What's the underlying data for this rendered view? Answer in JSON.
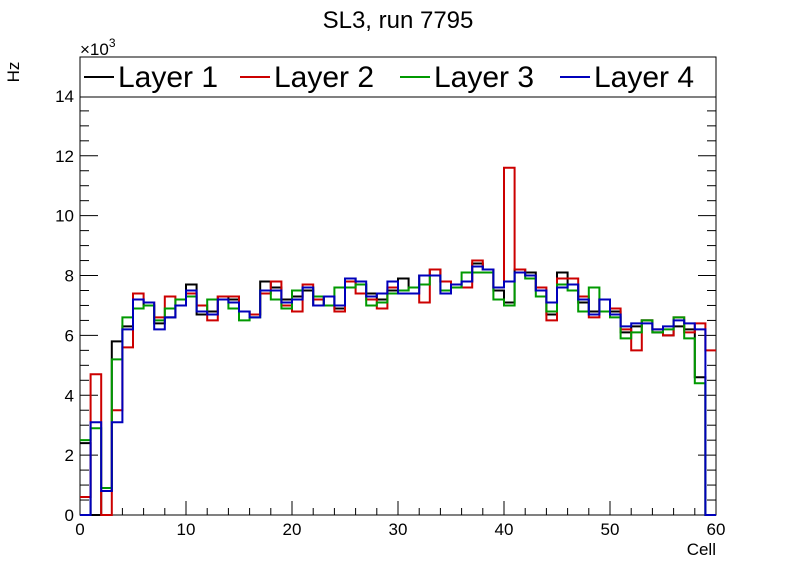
{
  "chart_data": {
    "type": "histogram-step",
    "title": "SL3, run 7795",
    "xlabel": "Cell",
    "ylabel": "Hz",
    "y_multiplier_label": "×10",
    "y_multiplier_exponent": "3",
    "xlim": [
      0,
      60
    ],
    "ylim": [
      0,
      15.3
    ],
    "x_ticks": [
      0,
      10,
      20,
      30,
      40,
      50,
      60
    ],
    "y_ticks": [
      0,
      2,
      4,
      6,
      8,
      10,
      12,
      14
    ],
    "bin_width": 1,
    "legend_position": "top",
    "series": [
      {
        "name": "Layer 1",
        "color": "#000000",
        "values": [
          2.4,
          0,
          0.8,
          5.8,
          6.3,
          7.2,
          7.0,
          6.4,
          6.6,
          7.0,
          7.7,
          6.7,
          6.8,
          7.3,
          7.2,
          6.8,
          6.7,
          7.8,
          7.6,
          7.2,
          7.3,
          7.5,
          7.0,
          7.3,
          6.9,
          7.9,
          7.7,
          7.4,
          7.2,
          7.5,
          7.9,
          7.6,
          8.0,
          8.2,
          7.8,
          7.6,
          7.8,
          8.4,
          8.2,
          7.5,
          7.1,
          8.2,
          8.1,
          7.5,
          6.7,
          8.1,
          7.7,
          7.1,
          6.8,
          7.2,
          6.8,
          6.1,
          6.3,
          6.5,
          6.1,
          6.0,
          6.3,
          6.2,
          4.6,
          0
        ]
      },
      {
        "name": "Layer 2",
        "color": "#cc0000",
        "values": [
          0.6,
          4.7,
          0,
          3.5,
          5.6,
          7.4,
          7.1,
          6.6,
          7.3,
          7.0,
          7.4,
          7.0,
          6.5,
          7.3,
          7.3,
          6.8,
          6.7,
          7.4,
          7.8,
          7.0,
          6.8,
          7.7,
          7.2,
          7.0,
          6.8,
          7.8,
          7.4,
          7.2,
          6.9,
          7.6,
          7.5,
          7.6,
          7.1,
          8.2,
          7.8,
          7.6,
          7.6,
          8.5,
          8.2,
          7.6,
          11.6,
          8.2,
          8.0,
          7.6,
          6.5,
          7.9,
          7.9,
          7.3,
          6.6,
          7.2,
          6.9,
          6.2,
          5.5,
          6.5,
          6.2,
          6.0,
          6.6,
          6.1,
          6.4,
          5.5
        ]
      },
      {
        "name": "Layer 3",
        "color": "#009900",
        "values": [
          2.5,
          2.9,
          0.9,
          5.2,
          6.6,
          6.9,
          7.0,
          6.5,
          6.9,
          7.2,
          7.3,
          6.8,
          7.2,
          7.2,
          6.9,
          6.5,
          6.6,
          7.5,
          7.2,
          6.9,
          7.5,
          7.6,
          7.3,
          7.0,
          7.6,
          7.6,
          7.7,
          7.0,
          7.1,
          7.4,
          7.5,
          7.6,
          7.7,
          8.0,
          7.5,
          7.6,
          8.1,
          8.1,
          8.1,
          7.2,
          7.0,
          8.1,
          7.9,
          7.3,
          6.8,
          7.7,
          7.5,
          6.8,
          7.6,
          6.8,
          6.6,
          5.9,
          6.1,
          6.5,
          6.1,
          6.2,
          6.6,
          5.9,
          4.4,
          0
        ]
      },
      {
        "name": "Layer 4",
        "color": "#0000bb",
        "values": [
          0,
          3.1,
          0.8,
          3.1,
          6.2,
          7.2,
          7.1,
          6.2,
          6.6,
          7.0,
          7.5,
          6.8,
          6.7,
          7.2,
          7.1,
          6.8,
          6.6,
          7.5,
          7.5,
          7.1,
          7.2,
          7.6,
          7.0,
          7.3,
          7.0,
          7.9,
          7.8,
          7.3,
          7.4,
          7.8,
          7.4,
          7.4,
          8.0,
          8.0,
          7.4,
          7.7,
          7.8,
          8.3,
          8.2,
          7.6,
          7.8,
          8.1,
          8.0,
          7.5,
          7.1,
          7.6,
          7.7,
          7.2,
          6.7,
          7.2,
          6.7,
          6.3,
          6.4,
          6.4,
          6.2,
          6.3,
          6.5,
          6.4,
          6.2,
          0
        ]
      }
    ]
  }
}
